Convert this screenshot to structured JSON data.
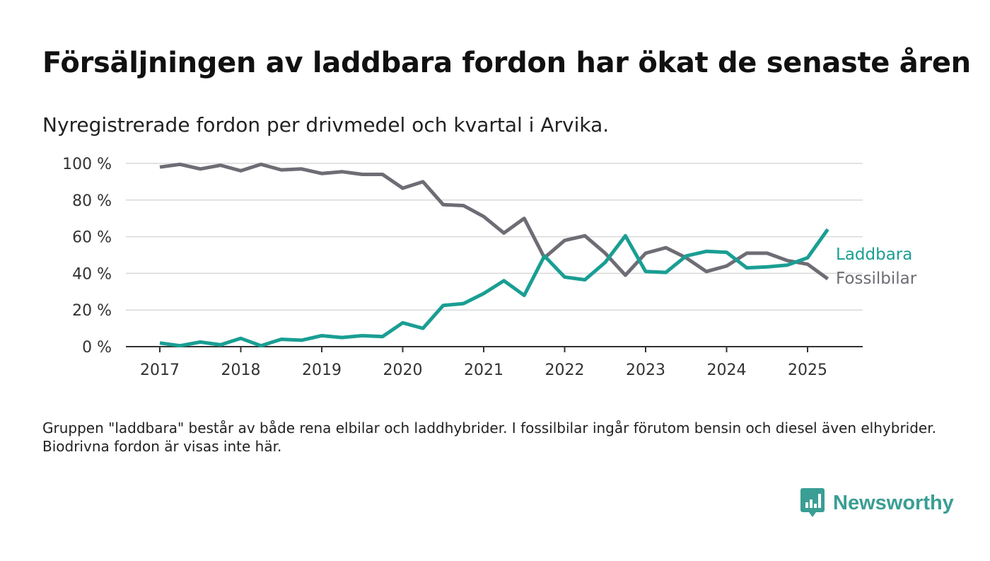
{
  "title": "Försäljningen av laddbara fordon har ökat de senaste åren",
  "subtitle": "Nyregistrerade fordon per drivmedel och kvartal i Arvika.",
  "footnote": "Gruppen \"laddbara\" består av både rena elbilar och laddhybrider. I fossilbilar ingår förutom bensin och diesel även elhybrider. Biodrivna fordon är visas inte här.",
  "brand": {
    "name": "Newsworthy",
    "icon": "bar-chart-speech-bubble-icon",
    "color": "#3a9e94"
  },
  "chart_data": {
    "type": "line",
    "x": [
      2017.0,
      2017.25,
      2017.5,
      2017.75,
      2018.0,
      2018.25,
      2018.5,
      2018.75,
      2019.0,
      2019.25,
      2019.5,
      2019.75,
      2020.0,
      2020.25,
      2020.5,
      2020.75,
      2021.0,
      2021.25,
      2021.5,
      2021.75,
      2022.0,
      2022.25,
      2022.5,
      2022.75,
      2023.0,
      2023.25,
      2023.5,
      2023.75,
      2024.0,
      2024.25,
      2024.5,
      2024.75,
      2025.0,
      2025.25
    ],
    "x_ticks": [
      "2017",
      "2018",
      "2019",
      "2020",
      "2021",
      "2022",
      "2023",
      "2024",
      "2025"
    ],
    "y_ticks": [
      "0 %",
      "20 %",
      "40 %",
      "60 %",
      "80 %",
      "100 %"
    ],
    "ylim": [
      0,
      100
    ],
    "grid": true,
    "legend": "direct labels at line ends",
    "series": [
      {
        "name": "Laddbara",
        "color": "#1a9e93",
        "values": [
          2,
          0.5,
          2.5,
          1,
          4.5,
          0.5,
          4,
          3.5,
          6,
          5,
          6,
          5.5,
          13,
          10,
          22.5,
          23.5,
          29,
          36,
          28,
          49.5,
          38,
          36.5,
          46,
          60.5,
          41,
          40.5,
          49.5,
          52,
          51.5,
          43,
          43.5,
          44.5,
          48.5,
          64
        ]
      },
      {
        "name": "Fossilbilar",
        "color": "#6e6c74",
        "values": [
          98,
          99.5,
          97,
          99,
          96,
          99.5,
          96.5,
          97,
          94.5,
          95.5,
          94,
          94,
          86.5,
          90,
          77.5,
          77,
          71,
          62,
          70,
          48.5,
          58,
          60.5,
          51,
          39,
          51,
          54,
          48.5,
          41,
          44,
          51,
          51,
          47,
          45,
          37
        ]
      }
    ]
  }
}
